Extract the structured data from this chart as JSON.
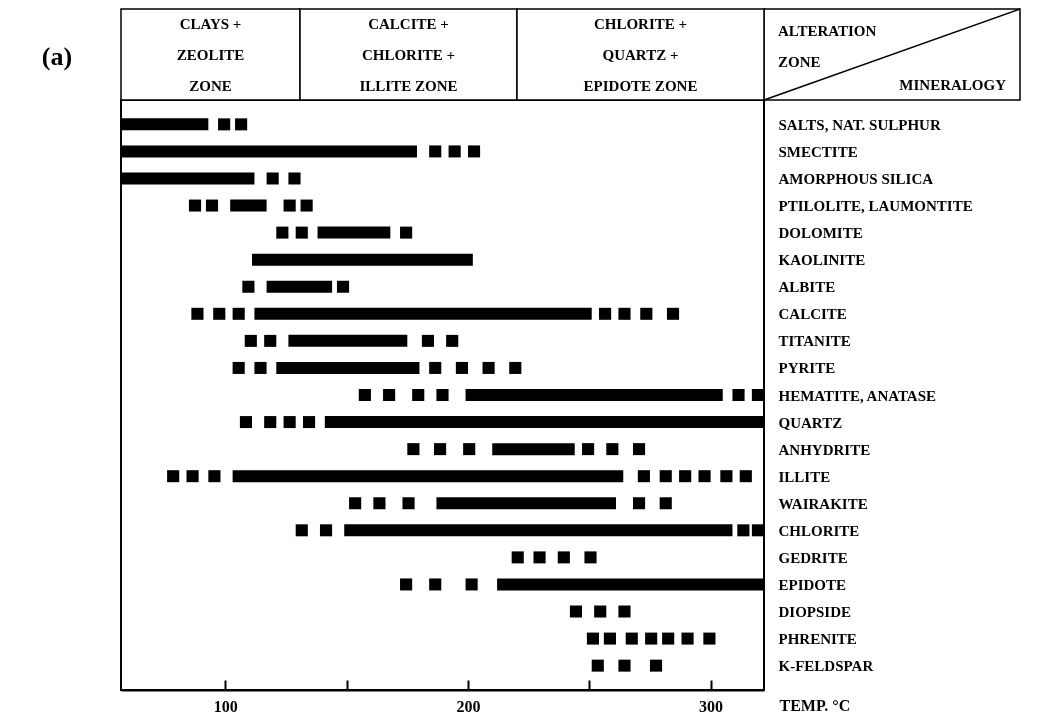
{
  "chart_data": {
    "type": "bar",
    "orientation": "horizontal",
    "xlabel": "TEMP. °C",
    "ylabel": "MINERALOGY",
    "annotations": [
      "(a)",
      "CLAYS +\nZEOLITE\nZONE",
      "CALCITE +\nCHLORITE +\nILLITE ZONE",
      "CHLORITE +\nQUARTZ +\nEPIDOTE ZONE",
      "ALTERATION\nZONE"
    ],
    "categories": [
      "SALTS, NAT. SULPHUR",
      "SMECTITE",
      "AMORPHOUS SILICA",
      "PTILOLITE, LAUMONTITE",
      "DOLOMITE",
      "KAOLINITE",
      "ALBITE",
      "CALCITE",
      "TITANITE",
      "PYRITE",
      "HEMATITE, ANATASE",
      "QUARTZ",
      "ANHYDRITE",
      "ILLITE",
      "WAIRAKITE",
      "CHLORITE",
      "GEDRITE",
      "EPIDOTE",
      "DIOPSIDE",
      "PHRENITE",
      "K-FELDSPAR"
    ],
    "xlim": [
      57,
      322
    ],
    "xticks": [
      100,
      {
        "value": 150,
        "label": null
      },
      200,
      {
        "value": 250,
        "label": null
      },
      300
    ],
    "series": [
      {
        "color": "#000000",
        "base": [
          57,
          57,
          57,
          102,
          138,
          111,
          117,
          112,
          126,
          121,
          199,
          141,
          210,
          103,
          187,
          149,
          null,
          212,
          null,
          null,
          null
        ],
        "values": [
          36,
          122,
          55,
          15,
          30,
          91,
          27,
          139,
          49,
          59,
          106,
          181,
          34,
          161,
          74,
          160,
          null,
          110,
          null,
          null,
          null
        ]
      },
      {
        "color": "#000000",
        "base": [
          97,
          184,
          117,
          85,
          121,
          null,
          107,
          86,
          108,
          103,
          155,
          106,
          175,
          76,
          151,
          129,
          218,
          172,
          242,
          249,
          251
        ],
        "values": [
          5,
          5,
          5,
          5,
          5,
          null,
          5,
          5,
          5,
          5,
          5,
          5,
          5,
          5,
          5,
          5,
          5,
          5,
          5,
          5,
          5
        ]
      },
      {
        "color": "#000000",
        "base": [
          104,
          192,
          126,
          92,
          129,
          null,
          146,
          95,
          116,
          112,
          165,
          116,
          186,
          84,
          161,
          139,
          227,
          184,
          252,
          256,
          262
        ],
        "values": [
          5,
          5,
          5,
          5,
          5,
          null,
          5,
          5,
          5,
          5,
          5,
          5,
          5,
          5,
          5,
          5,
          5,
          5,
          5,
          5,
          5
        ]
      },
      {
        "color": "#000000",
        "base": [
          null,
          200,
          null,
          124,
          172,
          null,
          null,
          103,
          181,
          184,
          177,
          124,
          198,
          93,
          173,
          311,
          237,
          199,
          262,
          265,
          275
        ],
        "values": [
          null,
          5,
          null,
          5,
          5,
          null,
          null,
          5,
          5,
          5,
          5,
          5,
          5,
          5,
          5,
          5,
          5,
          5,
          5,
          5,
          5
        ]
      },
      {
        "color": "#000000",
        "base": [
          null,
          null,
          null,
          131,
          null,
          null,
          null,
          254,
          191,
          195,
          187,
          132,
          247,
          270,
          268,
          317,
          248,
          null,
          null,
          273,
          null
        ],
        "values": [
          null,
          null,
          null,
          5,
          null,
          null,
          null,
          5,
          5,
          5,
          5,
          5,
          5,
          5,
          5,
          5,
          5,
          null,
          null,
          5,
          null
        ]
      },
      {
        "color": "#000000",
        "base": [
          null,
          null,
          null,
          null,
          null,
          null,
          null,
          262,
          null,
          206,
          309,
          null,
          257,
          279,
          279,
          null,
          null,
          null,
          null,
          280,
          null
        ],
        "values": [
          null,
          null,
          null,
          null,
          null,
          null,
          null,
          5,
          null,
          5,
          5,
          null,
          5,
          5,
          5,
          null,
          null,
          null,
          null,
          5,
          null
        ]
      },
      {
        "color": "#000000",
        "base": [
          null,
          null,
          null,
          null,
          null,
          null,
          null,
          271,
          null,
          217,
          317,
          null,
          268,
          287,
          null,
          null,
          null,
          null,
          null,
          288,
          null
        ],
        "values": [
          null,
          null,
          null,
          null,
          null,
          null,
          null,
          5,
          null,
          5,
          5,
          null,
          5,
          5,
          null,
          null,
          null,
          null,
          null,
          5,
          null
        ]
      },
      {
        "color": "#000000",
        "base": [
          null,
          null,
          null,
          null,
          null,
          null,
          null,
          282,
          null,
          null,
          null,
          null,
          null,
          295,
          null,
          null,
          null,
          null,
          null,
          297,
          null
        ],
        "values": [
          null,
          null,
          null,
          null,
          null,
          null,
          null,
          5,
          null,
          null,
          null,
          null,
          null,
          5,
          null,
          null,
          null,
          null,
          null,
          5,
          null
        ]
      },
      {
        "color": "#000000",
        "base": [
          null,
          null,
          null,
          null,
          null,
          null,
          null,
          null,
          null,
          null,
          null,
          null,
          null,
          304,
          null,
          null,
          null,
          null,
          null,
          null,
          null
        ],
        "values": [
          null,
          null,
          null,
          null,
          null,
          null,
          null,
          null,
          null,
          null,
          null,
          null,
          null,
          5,
          null,
          null,
          null,
          null,
          null,
          null,
          null
        ]
      },
      {
        "color": "#000000",
        "base": [
          null,
          null,
          null,
          null,
          null,
          null,
          null,
          null,
          null,
          null,
          null,
          null,
          null,
          312,
          null,
          null,
          null,
          null,
          null,
          null,
          null
        ],
        "values": [
          null,
          null,
          null,
          null,
          null,
          null,
          null,
          null,
          null,
          null,
          null,
          null,
          null,
          5,
          null,
          null,
          null,
          null,
          null,
          null,
          null
        ]
      }
    ]
  }
}
